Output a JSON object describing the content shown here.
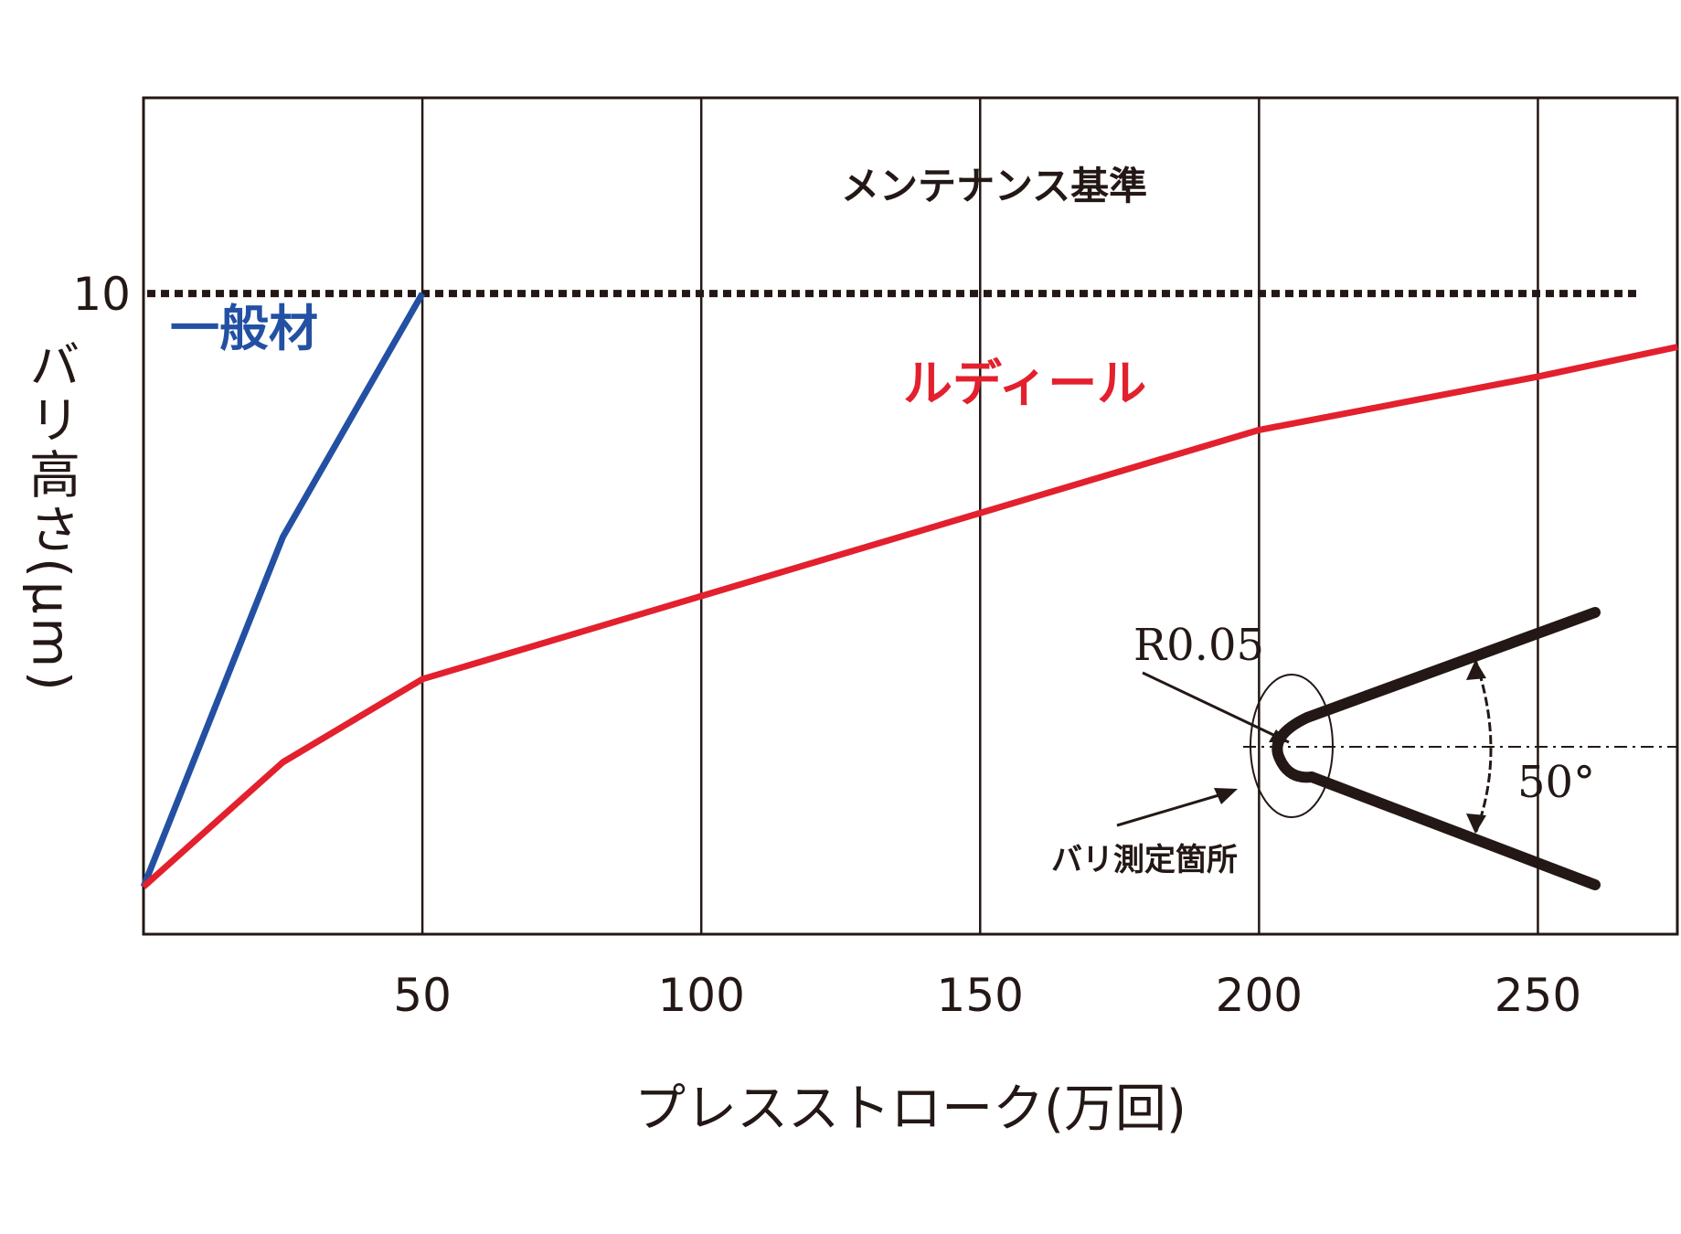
{
  "chart_data": {
    "type": "line",
    "xlabel": "プレスストローク(万回)",
    "ylabel": "バリ高さ(μm)",
    "x_ticks": [
      50,
      100,
      150,
      200,
      250
    ],
    "x_tick_labels": [
      "50",
      "100",
      "150",
      "200",
      "250"
    ],
    "y_ticks": [
      10
    ],
    "y_tick_labels": [
      "10"
    ],
    "xlim": [
      0,
      275
    ],
    "ylim": [
      -0.8,
      13.3
    ],
    "vertical_grid": true,
    "reference_line": {
      "y": 10,
      "label": "メンテナンス基準",
      "style": "dotted"
    },
    "series": [
      {
        "name": "一般材",
        "color": "#2350a3",
        "x": [
          0,
          25,
          50
        ],
        "y": [
          0,
          5.9,
          10
        ]
      },
      {
        "name": "ルディール",
        "color": "#e3202e",
        "x": [
          0,
          25,
          50,
          100,
          150,
          200,
          250,
          275
        ],
        "y": [
          0,
          2.1,
          3.5,
          4.9,
          6.3,
          7.7,
          8.6,
          9.1
        ]
      }
    ],
    "inset": {
      "radius_label": "R0.05",
      "angle_label": "50°",
      "measure_label": "バリ測定箇所"
    }
  }
}
